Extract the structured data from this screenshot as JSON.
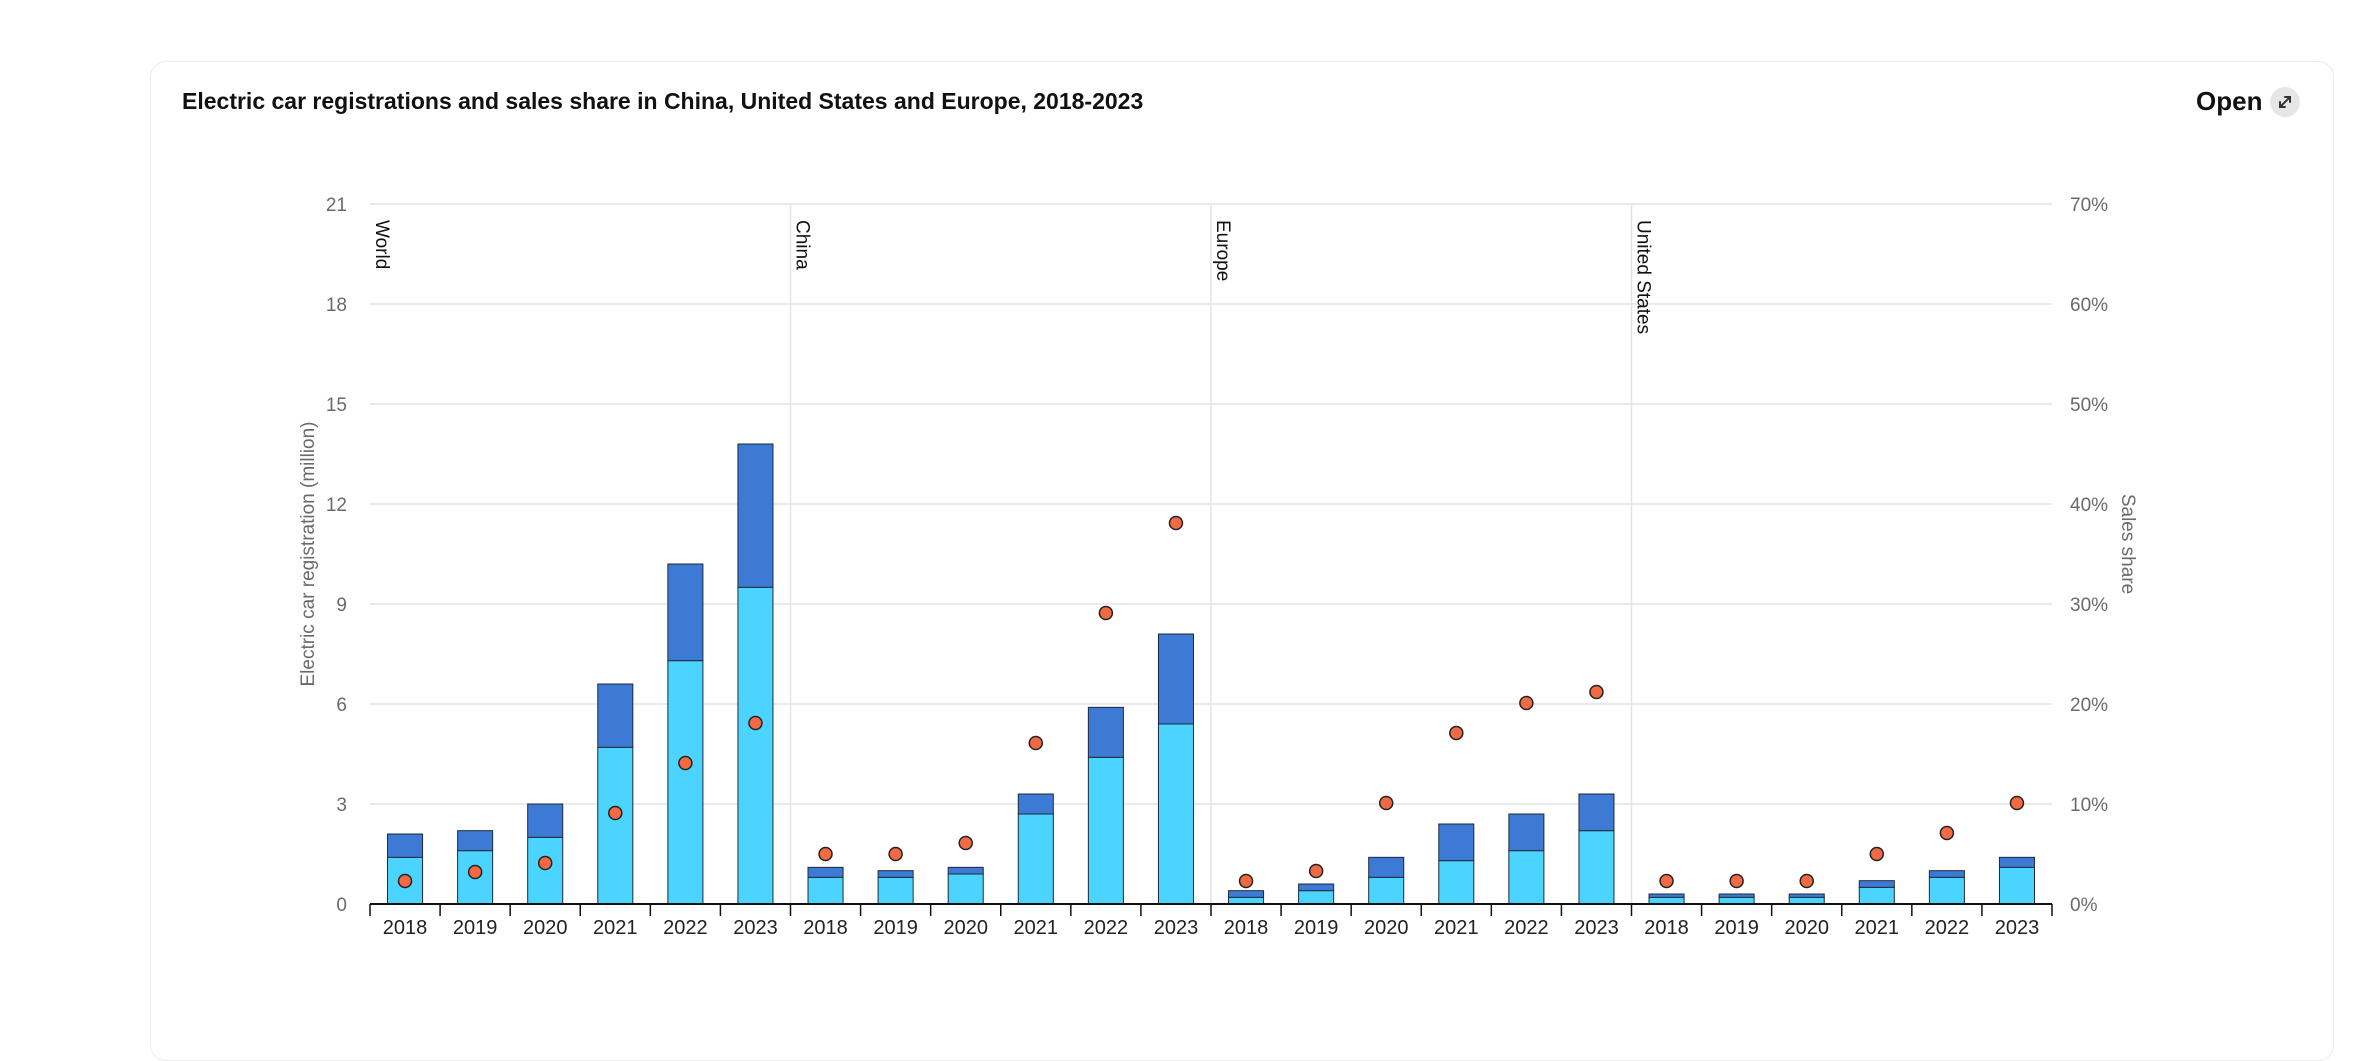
{
  "header": {
    "title": "Electric car registrations and sales share in China, United States and Europe, 2018-2023",
    "open_label": "Open",
    "open_icon": "expand-icon"
  },
  "chart_data": {
    "type": "bar",
    "stacked": true,
    "title": "Electric car registrations and sales share in China, United States and Europe, 2018-2023",
    "ylabel": "Electric car registration (million)",
    "y2label": "Sales share",
    "ylim": [
      0,
      21
    ],
    "yticks": [
      0,
      3,
      6,
      9,
      12,
      15,
      18,
      21
    ],
    "y2lim": [
      0,
      70
    ],
    "y2ticks": [
      "0%",
      "10%",
      "20%",
      "30%",
      "40%",
      "50%",
      "60%",
      "70%"
    ],
    "grid": true,
    "categories": [
      "2018",
      "2019",
      "2020",
      "2021",
      "2022",
      "2023"
    ],
    "panels": [
      {
        "name": "World",
        "bev": [
          1.4,
          1.6,
          2.0,
          4.7,
          7.3,
          9.5
        ],
        "phev": [
          0.7,
          0.6,
          1.0,
          1.9,
          2.9,
          4.3
        ],
        "share": [
          2.3,
          3.2,
          4.1,
          9.1,
          14.1,
          18.1
        ]
      },
      {
        "name": "China",
        "bev": [
          0.8,
          0.8,
          0.9,
          2.7,
          4.4,
          5.4
        ],
        "phev": [
          0.3,
          0.2,
          0.2,
          0.6,
          1.5,
          2.7
        ],
        "share": [
          5.0,
          5.0,
          6.1,
          16.1,
          29.1,
          38.1
        ]
      },
      {
        "name": "Europe",
        "bev": [
          0.2,
          0.4,
          0.8,
          1.3,
          1.6,
          2.2
        ],
        "phev": [
          0.2,
          0.2,
          0.6,
          1.1,
          1.1,
          1.1
        ],
        "share": [
          2.3,
          3.3,
          10.1,
          17.1,
          20.1,
          21.2
        ]
      },
      {
        "name": "United States",
        "bev": [
          0.2,
          0.2,
          0.2,
          0.5,
          0.8,
          1.1
        ],
        "phev": [
          0.1,
          0.1,
          0.1,
          0.2,
          0.2,
          0.3
        ],
        "share": [
          2.3,
          2.3,
          2.3,
          5.0,
          7.1,
          10.1
        ]
      }
    ],
    "colors": {
      "bev": "#4ad4ff",
      "phev": "#3d7ad6",
      "share": "#f26a43",
      "outline": "#1e2a3a"
    }
  }
}
